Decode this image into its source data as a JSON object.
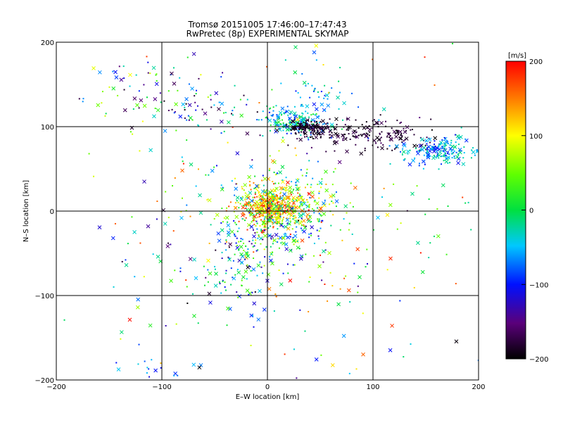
{
  "chart_data": {
    "type": "scatter",
    "title": "Tromsø 20151005 17:46:00–17:47:43",
    "subtitle": "RwPretec (8p) EXPERIMENTAL SKYMAP",
    "xlabel": "E–W location [km]",
    "ylabel": "N–S location [km]",
    "xlim": [
      -200,
      200
    ],
    "ylim": [
      -200,
      200
    ],
    "xticks": [
      -200,
      -100,
      0,
      100,
      200
    ],
    "yticks": [
      -200,
      -100,
      0,
      100,
      200
    ],
    "xtick_labels": [
      "−200",
      "−100",
      "0",
      "100",
      "200"
    ],
    "ytick_labels": [
      "−200",
      "−100",
      "0",
      "100",
      "200"
    ],
    "grid": true,
    "color_scale": {
      "label": "[m/s]",
      "min": -200,
      "max": 200,
      "ticks": [
        -200,
        -100,
        0,
        100,
        200
      ],
      "tick_labels": [
        "−200",
        "−100",
        "0",
        "100",
        "200"
      ],
      "colormap": "rainbow (black-purple-blue-cyan-green-yellow-red)"
    },
    "marker_types": [
      "dot",
      "x"
    ],
    "clusters": [
      {
        "x": 5,
        "y": 5,
        "sx": 14,
        "sy": 12,
        "n": 420,
        "v": [
          50,
          200
        ]
      },
      {
        "x": 15,
        "y": 10,
        "sx": 30,
        "sy": 25,
        "n": 260,
        "v": [
          -80,
          150
        ]
      },
      {
        "x": 10,
        "y": -20,
        "sx": 30,
        "sy": 25,
        "n": 170,
        "v": [
          -150,
          80
        ]
      },
      {
        "x": -30,
        "y": -70,
        "sx": 15,
        "sy": 25,
        "n": 90,
        "v": [
          -140,
          60
        ]
      },
      {
        "x": 25,
        "y": 105,
        "sx": 15,
        "sy": 8,
        "n": 170,
        "v": [
          -110,
          20
        ]
      },
      {
        "x": 40,
        "y": 98,
        "sx": 10,
        "sy": 5,
        "n": 120,
        "v": [
          -200,
          -170
        ]
      },
      {
        "x": 100,
        "y": 90,
        "sx": 30,
        "sy": 10,
        "n": 170,
        "v": [
          -200,
          -160
        ]
      },
      {
        "x": 165,
        "y": 70,
        "sx": 20,
        "sy": 8,
        "n": 190,
        "v": [
          -110,
          -10
        ]
      },
      {
        "x": -115,
        "y": 145,
        "sx": 35,
        "sy": 20,
        "n": 70,
        "v": [
          -200,
          100
        ]
      },
      {
        "x": -60,
        "y": 120,
        "sx": 30,
        "sy": 15,
        "n": 60,
        "v": [
          -200,
          50
        ]
      },
      {
        "x": 45,
        "y": 135,
        "sx": 20,
        "sy": 20,
        "n": 60,
        "v": [
          -100,
          0
        ]
      },
      {
        "x": -110,
        "y": -185,
        "sx": 20,
        "sy": 8,
        "n": 16,
        "v": [
          -120,
          -40
        ]
      },
      {
        "x": 160,
        "y": -20,
        "sx": 25,
        "sy": 25,
        "n": 18,
        "v": [
          -40,
          60
        ]
      },
      {
        "x": -100,
        "y": -50,
        "sx": 35,
        "sy": 40,
        "n": 45,
        "v": [
          -200,
          200
        ]
      },
      {
        "x": 60,
        "y": -100,
        "sx": 40,
        "sy": 50,
        "n": 45,
        "v": [
          -200,
          200
        ]
      },
      {
        "x": 0,
        "y": 0,
        "sx": 120,
        "sy": 120,
        "n": 130,
        "v": [
          -200,
          200
        ]
      }
    ]
  }
}
